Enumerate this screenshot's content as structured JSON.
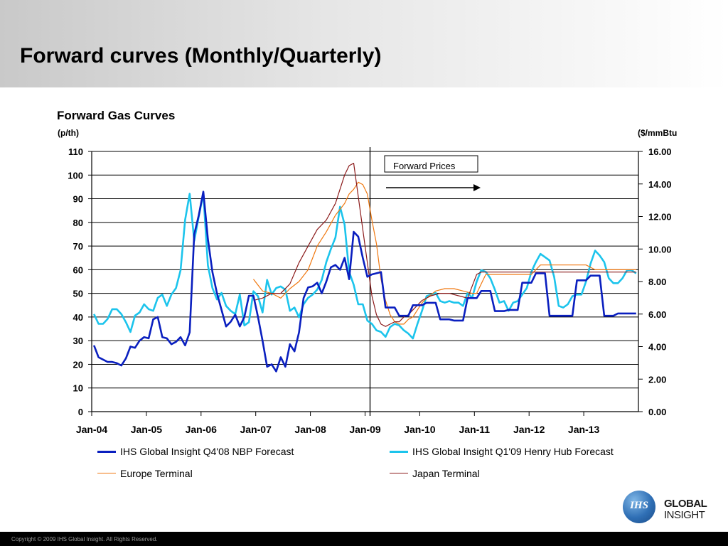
{
  "slide": {
    "title": "Forward curves (Monthly/Quarterly)",
    "copyright": "Copyright © 2009 IHS Global Insight. All Rights Reserved."
  },
  "logo": {
    "mark": "IHS",
    "word1": "GLOBAL",
    "word2": "INSIGHT"
  },
  "chart_data": {
    "type": "line",
    "title": "Forward Gas Curves",
    "y_left_label": "(p/th)",
    "y_right_label": "($/mmBtu",
    "y_left_range": [
      0,
      110
    ],
    "y_right_range": [
      0,
      16
    ],
    "y_left_ticks": [
      "0",
      "10",
      "20",
      "30",
      "40",
      "50",
      "60",
      "70",
      "80",
      "90",
      "100",
      "110"
    ],
    "y_right_ticks": [
      "0.00",
      "2.00",
      "4.00",
      "6.00",
      "8.00",
      "10.00",
      "12.00",
      "14.00",
      "16.00"
    ],
    "x_range": [
      "2004-01",
      "2013-12"
    ],
    "x_ticks": [
      "Jan-04",
      "Jan-05",
      "Jan-06",
      "Jan-07",
      "Jan-08",
      "Jan-09",
      "Jan-10",
      "Jan-11",
      "Jan-12",
      "Jan-13"
    ],
    "grid": {
      "horizontal": true,
      "vertical": false
    },
    "legend_position": "bottom",
    "annotation": {
      "text": "Forward Prices",
      "divider_at": "2009-01",
      "arrow_direction": "right"
    },
    "series": [
      {
        "name": "IHS Global Insight Q4'08 NBP Forecast",
        "color": "#0a1fbf",
        "axis": "left",
        "x": [
          "2004-01",
          "2004-02",
          "2004-03",
          "2004-04",
          "2004-05",
          "2004-06",
          "2004-07",
          "2004-08",
          "2004-09",
          "2004-10",
          "2004-11",
          "2004-12",
          "2005-01",
          "2005-02",
          "2005-03",
          "2005-04",
          "2005-05",
          "2005-06",
          "2005-07",
          "2005-08",
          "2005-09",
          "2005-10",
          "2005-11",
          "2005-12",
          "2006-01",
          "2006-02",
          "2006-03",
          "2006-04",
          "2006-05",
          "2006-06",
          "2006-07",
          "2006-08",
          "2006-09",
          "2006-10",
          "2006-11",
          "2006-12",
          "2007-01",
          "2007-02",
          "2007-03",
          "2007-04",
          "2007-05",
          "2007-06",
          "2007-07",
          "2007-08",
          "2007-09",
          "2007-10",
          "2007-11",
          "2007-12",
          "2008-01",
          "2008-02",
          "2008-03",
          "2008-04",
          "2008-05",
          "2008-06",
          "2008-07",
          "2008-08",
          "2008-09",
          "2008-10",
          "2008-11",
          "2008-12",
          "2009-01",
          "2009-02",
          "2009-04",
          "2009-05",
          "2009-07",
          "2009-08",
          "2009-10",
          "2009-11",
          "2010-01",
          "2010-02",
          "2010-04",
          "2010-05",
          "2010-07",
          "2010-08",
          "2010-10",
          "2010-11",
          "2011-01",
          "2011-02",
          "2011-04",
          "2011-05",
          "2011-07",
          "2011-08",
          "2011-10",
          "2011-11",
          "2012-01",
          "2012-02",
          "2012-04",
          "2012-05",
          "2012-07",
          "2012-08",
          "2012-10",
          "2012-11",
          "2013-01",
          "2013-02",
          "2013-04",
          "2013-05",
          "2013-07",
          "2013-08",
          "2013-10",
          "2013-11",
          "2013-12"
        ],
        "values": [
          28,
          23,
          22,
          21,
          21,
          20.5,
          19.5,
          22.5,
          27.5,
          27,
          30,
          31.5,
          31,
          39,
          40,
          31.5,
          31,
          28.5,
          29.5,
          31.5,
          28,
          33.5,
          75,
          83,
          93,
          73,
          59,
          50,
          43,
          36,
          38,
          41,
          36,
          40,
          49,
          49,
          40,
          30,
          19,
          20,
          17,
          23,
          19,
          28.5,
          25.5,
          33.5,
          48,
          52.5,
          53,
          54.5,
          50,
          55,
          61,
          62,
          60,
          65,
          56,
          76,
          74,
          65,
          57,
          58,
          59,
          44,
          44,
          40.5,
          40.5,
          45,
          45,
          46,
          46,
          39,
          39,
          38.5,
          38.5,
          48,
          48,
          51,
          51,
          42.5,
          42.5,
          43,
          43,
          54.5,
          54.5,
          58.5,
          58.5,
          40.5,
          40.5,
          40.5,
          40.5,
          55.5,
          55.5,
          57.5,
          57.5,
          40.5,
          40.5,
          41.5,
          41.5,
          41.5,
          41.5
        ]
      },
      {
        "name": "IHS Global Insight Q1'09 Henry Hub Forecast",
        "color": "#1cc4ec",
        "axis": "right",
        "x": [
          "2004-01",
          "2004-02",
          "2004-03",
          "2004-04",
          "2004-05",
          "2004-06",
          "2004-07",
          "2004-08",
          "2004-09",
          "2004-10",
          "2004-11",
          "2004-12",
          "2005-01",
          "2005-02",
          "2005-03",
          "2005-04",
          "2005-05",
          "2005-06",
          "2005-07",
          "2005-08",
          "2005-09",
          "2005-10",
          "2005-11",
          "2005-12",
          "2006-01",
          "2006-02",
          "2006-03",
          "2006-04",
          "2006-05",
          "2006-06",
          "2006-07",
          "2006-08",
          "2006-09",
          "2006-10",
          "2006-11",
          "2006-12",
          "2007-01",
          "2007-02",
          "2007-03",
          "2007-04",
          "2007-05",
          "2007-06",
          "2007-07",
          "2007-08",
          "2007-09",
          "2007-10",
          "2007-11",
          "2007-12",
          "2008-01",
          "2008-02",
          "2008-03",
          "2008-04",
          "2008-05",
          "2008-06",
          "2008-07",
          "2008-08",
          "2008-09",
          "2008-10",
          "2008-11",
          "2008-12",
          "2009-01",
          "2009-02",
          "2009-03",
          "2009-04",
          "2009-05",
          "2009-06",
          "2009-07",
          "2009-08",
          "2009-09",
          "2009-10",
          "2009-11",
          "2009-12",
          "2010-01",
          "2010-02",
          "2010-03",
          "2010-04",
          "2010-05",
          "2010-06",
          "2010-07",
          "2010-08",
          "2010-09",
          "2010-10",
          "2010-11",
          "2010-12",
          "2011-01",
          "2011-02",
          "2011-03",
          "2011-04",
          "2011-05",
          "2011-06",
          "2011-07",
          "2011-08",
          "2011-09",
          "2011-10",
          "2011-11",
          "2011-12",
          "2012-01",
          "2012-02",
          "2012-03",
          "2012-04",
          "2012-05",
          "2012-06",
          "2012-07",
          "2012-08",
          "2012-09",
          "2012-10",
          "2012-11",
          "2012-12",
          "2013-01",
          "2013-02",
          "2013-03",
          "2013-04",
          "2013-05",
          "2013-06",
          "2013-07",
          "2013-08",
          "2013-09",
          "2013-10",
          "2013-11",
          "2013-12"
        ],
        "values": [
          6.0,
          5.4,
          5.4,
          5.7,
          6.3,
          6.3,
          6.0,
          5.5,
          4.9,
          5.9,
          6.1,
          6.6,
          6.3,
          6.2,
          7.0,
          7.2,
          6.5,
          7.2,
          7.6,
          8.7,
          11.8,
          13.4,
          10.5,
          12.0,
          13.4,
          9.0,
          7.6,
          6.9,
          7.3,
          6.5,
          6.2,
          6.0,
          7.2,
          5.3,
          5.5,
          7.4,
          7.1,
          6.1,
          8.1,
          7.2,
          7.6,
          7.7,
          7.5,
          6.2,
          6.4,
          5.8,
          6.6,
          7.0,
          7.2,
          7.5,
          8.1,
          9.2,
          10.0,
          10.7,
          12.6,
          11.5,
          8.6,
          7.8,
          6.6,
          6.6,
          5.6,
          5.4,
          5.0,
          4.9,
          4.6,
          5.2,
          5.4,
          5.3,
          5.0,
          4.8,
          4.5,
          5.4,
          6.2,
          7.1,
          7.2,
          7.3,
          6.8,
          6.7,
          6.8,
          6.7,
          6.7,
          6.5,
          7.3,
          7.0,
          8.0,
          8.7,
          8.6,
          8.2,
          7.5,
          6.7,
          6.8,
          6.2,
          6.7,
          6.8,
          7.2,
          7.6,
          8.6,
          9.2,
          9.7,
          9.5,
          9.3,
          8.3,
          6.5,
          6.4,
          6.6,
          7.1,
          7.2,
          7.2,
          8.0,
          9.1,
          9.9,
          9.6,
          9.2,
          8.2,
          7.9,
          7.9,
          8.2,
          8.7,
          8.7,
          8.5
        ]
      },
      {
        "name": "Europe Terminal",
        "color": "#f07810",
        "axis": "left",
        "x": [
          "2006-12",
          "2007-02",
          "2007-04",
          "2007-06",
          "2007-08",
          "2007-10",
          "2007-12",
          "2008-02",
          "2008-04",
          "2008-06",
          "2008-08",
          "2008-09",
          "2008-10",
          "2008-11",
          "2008-12",
          "2009-01",
          "2009-02",
          "2009-03",
          "2009-04",
          "2009-05",
          "2009-06",
          "2009-07",
          "2009-08",
          "2009-09",
          "2009-10",
          "2009-11",
          "2009-12",
          "2010-01",
          "2010-02",
          "2010-04",
          "2010-06",
          "2010-08",
          "2010-10",
          "2010-12",
          "2011-01",
          "2011-03",
          "2011-06",
          "2011-09",
          "2011-12",
          "2012-01",
          "2012-03",
          "2012-06",
          "2012-09",
          "2012-12",
          "2013-01",
          "2013-03",
          "2013-06",
          "2013-09",
          "2013-12"
        ],
        "values": [
          56,
          51,
          50,
          48,
          52,
          55,
          60,
          70,
          76,
          83,
          88,
          92,
          94,
          97,
          96,
          92,
          81,
          71,
          56,
          47,
          41,
          38,
          37,
          37,
          39,
          40,
          43,
          46,
          48,
          51,
          52,
          52,
          51,
          50,
          50,
          58,
          58,
          58,
          58,
          58,
          62,
          62,
          62,
          62,
          62,
          60,
          60,
          60,
          60
        ]
      },
      {
        "name": "Japan Terminal",
        "color": "#8b1a1a",
        "axis": "left",
        "x": [
          "2006-12",
          "2007-02",
          "2007-04",
          "2007-06",
          "2007-08",
          "2007-10",
          "2007-12",
          "2008-02",
          "2008-04",
          "2008-06",
          "2008-08",
          "2008-09",
          "2008-10",
          "2008-11",
          "2008-12",
          "2009-01",
          "2009-02",
          "2009-03",
          "2009-04",
          "2009-05",
          "2009-06",
          "2009-07",
          "2009-08",
          "2009-09",
          "2009-10",
          "2009-11",
          "2009-12",
          "2010-01",
          "2010-03",
          "2010-05",
          "2010-07",
          "2010-09",
          "2010-11",
          "2011-01",
          "2011-02",
          "2011-06",
          "2011-12",
          "2012-06",
          "2012-12",
          "2013-06",
          "2013-12"
        ],
        "values": [
          47,
          48,
          50,
          50,
          54,
          63,
          70,
          77,
          81,
          88,
          100,
          104,
          105,
          91,
          77,
          63,
          49,
          41,
          37,
          36,
          37,
          38,
          38,
          40,
          41,
          43,
          45,
          47,
          49,
          50,
          50,
          49,
          48,
          58,
          59,
          59,
          59,
          59,
          59,
          59,
          59
        ]
      }
    ]
  }
}
